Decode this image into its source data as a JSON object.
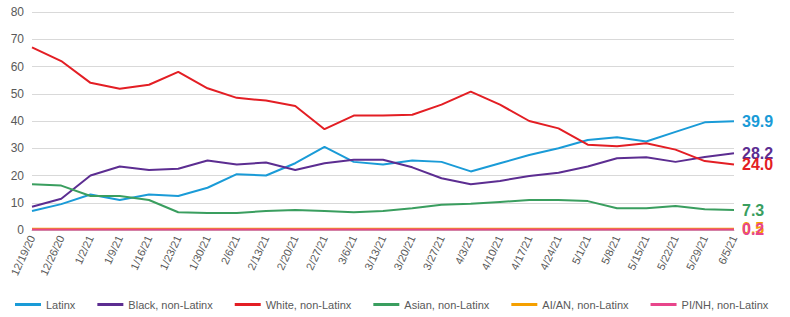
{
  "chart_data": {
    "type": "line",
    "categories": [
      "12/19/20",
      "12/26/20",
      "1/2/21",
      "1/9/21",
      "1/16/21",
      "1/23/21",
      "1/30/21",
      "2/6/21",
      "2/13/21",
      "2/20/21",
      "2/27/21",
      "3/6/21",
      "3/13/21",
      "3/20/21",
      "3/27/21",
      "4/3/21",
      "4/10/21",
      "4/17/21",
      "4/24/21",
      "5/1/21",
      "5/8/21",
      "5/15/21",
      "5/22/21",
      "5/29/21",
      "6/5/21"
    ],
    "ylim": [
      0,
      80
    ],
    "yticks": [
      0,
      10,
      20,
      30,
      40,
      50,
      60,
      70,
      80
    ],
    "grid": true,
    "legend": "bottom",
    "series": [
      {
        "name": "Latinx",
        "color": "#1a9bd7",
        "values": [
          7,
          9.5,
          13,
          11,
          13,
          12.5,
          15.5,
          20.5,
          20,
          24.5,
          30.5,
          25,
          24,
          25.5,
          25,
          21.5,
          24.5,
          27.5,
          30,
          33,
          34,
          32.5,
          36,
          39.5,
          39.9
        ],
        "value_labels": [
          null,
          null,
          null,
          null,
          null,
          null,
          null,
          null,
          null,
          null,
          null,
          null,
          null,
          null,
          null,
          null,
          null,
          null,
          null,
          null,
          null,
          null,
          null,
          null,
          "39.9"
        ]
      },
      {
        "name": "Black, non-Latinx",
        "color": "#5c2d91",
        "values": [
          8.5,
          11.5,
          20,
          23.3,
          22,
          22.5,
          25.5,
          24,
          24.8,
          22,
          24.5,
          25.8,
          25.8,
          23,
          19,
          16.8,
          18,
          19.8,
          21,
          23.3,
          26.3,
          26.7,
          25,
          26.8,
          28.2
        ],
        "value_labels": [
          null,
          null,
          null,
          null,
          null,
          null,
          null,
          null,
          null,
          null,
          null,
          null,
          null,
          null,
          null,
          null,
          null,
          null,
          null,
          null,
          null,
          null,
          null,
          null,
          "28.2"
        ]
      },
      {
        "name": "White, non-Latinx",
        "color": "#e31e24",
        "values": [
          67,
          62,
          54,
          51.8,
          53.3,
          58,
          52,
          48.5,
          47.5,
          45.5,
          37,
          42,
          42,
          42.3,
          46,
          50.8,
          46,
          40,
          37.3,
          31.3,
          30.7,
          31.8,
          29.5,
          25.3,
          24.0
        ],
        "value_labels": [
          null,
          null,
          null,
          null,
          null,
          null,
          null,
          null,
          null,
          null,
          null,
          null,
          null,
          null,
          null,
          null,
          null,
          null,
          null,
          null,
          null,
          null,
          null,
          null,
          "24.0"
        ]
      },
      {
        "name": "Asian, non-Latinx",
        "color": "#3a9e5f",
        "values": [
          16.8,
          16.3,
          12.5,
          12.5,
          11,
          6.5,
          6.2,
          6.2,
          7,
          7.3,
          7,
          6.5,
          7,
          8,
          9.3,
          9.6,
          10.3,
          11,
          11,
          10.6,
          8,
          8,
          8.8,
          7.6,
          7.3
        ],
        "value_labels": [
          null,
          null,
          null,
          null,
          null,
          null,
          null,
          null,
          null,
          null,
          null,
          null,
          null,
          null,
          null,
          null,
          null,
          null,
          null,
          null,
          null,
          null,
          null,
          null,
          "7.3"
        ]
      },
      {
        "name": "AI/AN, non-Latinx",
        "color": "#f5a000",
        "values": [
          0.5,
          0.5,
          0.5,
          0.5,
          0.5,
          0.5,
          0.5,
          0.5,
          0.5,
          0.5,
          0.5,
          0.5,
          0.5,
          0.5,
          0.5,
          0.5,
          0.5,
          0.5,
          0.5,
          0.5,
          0.5,
          0.5,
          0.5,
          0.5,
          0.5
        ],
        "value_labels": [
          null,
          null,
          null,
          null,
          null,
          null,
          null,
          null,
          null,
          null,
          null,
          null,
          null,
          null,
          null,
          null,
          null,
          null,
          null,
          null,
          null,
          null,
          null,
          null,
          "0.5"
        ]
      },
      {
        "name": "PI/NH, non-Latinx",
        "color": "#e8458b",
        "values": [
          0.2,
          0.2,
          0.2,
          0.2,
          0.2,
          0.2,
          0.2,
          0.2,
          0.2,
          0.2,
          0.2,
          0.2,
          0.2,
          0.2,
          0.2,
          0.2,
          0.2,
          0.2,
          0.2,
          0.2,
          0.2,
          0.2,
          0.2,
          0.2,
          0.2
        ],
        "value_labels": [
          null,
          null,
          null,
          null,
          null,
          null,
          null,
          null,
          null,
          null,
          null,
          null,
          null,
          null,
          null,
          null,
          null,
          null,
          null,
          null,
          null,
          null,
          null,
          null,
          "0.2"
        ]
      }
    ]
  }
}
